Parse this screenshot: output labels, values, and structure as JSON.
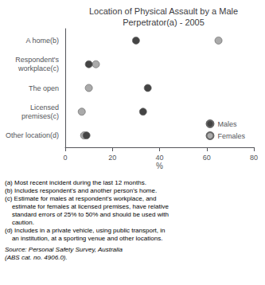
{
  "chart_data": {
    "type": "scatter",
    "orientation": "horizontal",
    "title": "Location of Physical Assault by a Male\nPerpetrator(a) - 2005",
    "categories": [
      "A home(b)",
      "Respondent's\nworkplace(c)",
      "The open",
      "Licensed\npremises(c)",
      "Other location(d)"
    ],
    "series": [
      {
        "name": "Males",
        "color": "#444444",
        "values": [
          30,
          10,
          35,
          33,
          9
        ]
      },
      {
        "name": "Females",
        "color": "#aaaaaa",
        "values": [
          65,
          13,
          10,
          7,
          8
        ]
      }
    ],
    "marker": "circle",
    "xlabel": "%",
    "xlim": [
      0,
      80
    ],
    "xticks": [
      0,
      20,
      40,
      60,
      80
    ],
    "legend": "lower right",
    "grid": false,
    "footnotes": [
      "(a) Most recent incident during the last 12 months.",
      "(b) Includes respondent's and another person's home.",
      "(c) Estimate for males at respondent's workplace, and",
      "    estimate for females at licensed premises, have relative",
      "    standard errors of 25% to 50% and should be used with",
      "    caution.",
      "(d) Includes in a private vehicle, using public transport, in",
      "    an institution, at a sporting venue and other locations."
    ],
    "source": [
      "Source: Personal Safety Survey, Australia",
      "(ABS cat. no. 4906.0)."
    ]
  }
}
